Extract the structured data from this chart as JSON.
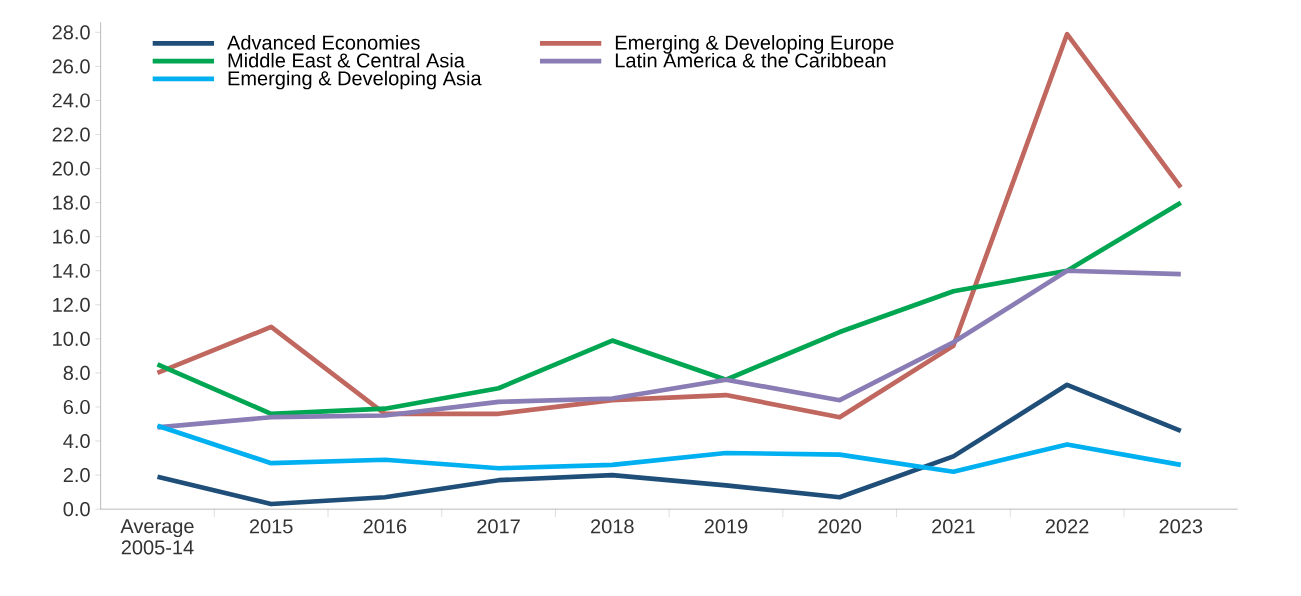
{
  "chart_data": {
    "type": "line",
    "categories": [
      "Average 2005-14",
      "2015",
      "2016",
      "2017",
      "2018",
      "2019",
      "2020",
      "2021",
      "2022",
      "2023"
    ],
    "series": [
      {
        "name": "Advanced Economies",
        "color": "#1f4e79",
        "values": [
          1.9,
          0.3,
          0.7,
          1.7,
          2.0,
          1.4,
          0.7,
          3.1,
          7.3,
          4.6
        ]
      },
      {
        "name": "Emerging & Developing Europe",
        "color": "#c0675f",
        "values": [
          8.0,
          10.7,
          5.6,
          5.6,
          6.4,
          6.7,
          5.4,
          9.6,
          27.9,
          18.9
        ]
      },
      {
        "name": "Middle East & Central Asia",
        "color": "#00a651",
        "values": [
          8.5,
          5.6,
          5.9,
          7.1,
          9.9,
          7.6,
          10.4,
          12.8,
          14.0,
          18.0
        ]
      },
      {
        "name": "Latin America & the Caribbean",
        "color": "#8a7cb4",
        "values": [
          4.8,
          5.4,
          5.5,
          6.3,
          6.5,
          7.6,
          6.4,
          9.8,
          14.0,
          13.8
        ]
      },
      {
        "name": "Emerging & Developing Asia",
        "color": "#00b0f0",
        "values": [
          4.9,
          2.7,
          2.9,
          2.4,
          2.6,
          3.3,
          3.2,
          2.2,
          3.8,
          2.6
        ]
      }
    ],
    "ylim": [
      0,
      28.6
    ],
    "yticks": [
      {
        "value": 0,
        "label": "0.0"
      },
      {
        "value": 2,
        "label": "2.0"
      },
      {
        "value": 4,
        "label": "4.0"
      },
      {
        "value": 6,
        "label": "6.0"
      },
      {
        "value": 8,
        "label": "8.0"
      },
      {
        "value": 10,
        "label": "10.0"
      },
      {
        "value": 12,
        "label": "12.0"
      },
      {
        "value": 14,
        "label": "14.0"
      },
      {
        "value": 16,
        "label": "16.0"
      },
      {
        "value": 18,
        "label": "18.0"
      },
      {
        "value": 20,
        "label": "20.0"
      },
      {
        "value": 22,
        "label": "22.0"
      },
      {
        "value": 24,
        "label": "24.0"
      },
      {
        "value": 26,
        "label": "26.0"
      },
      {
        "value": 28,
        "label": "28.0"
      }
    ],
    "legend": "top left",
    "grid": false,
    "marker": "none",
    "line_style": "solid"
  }
}
